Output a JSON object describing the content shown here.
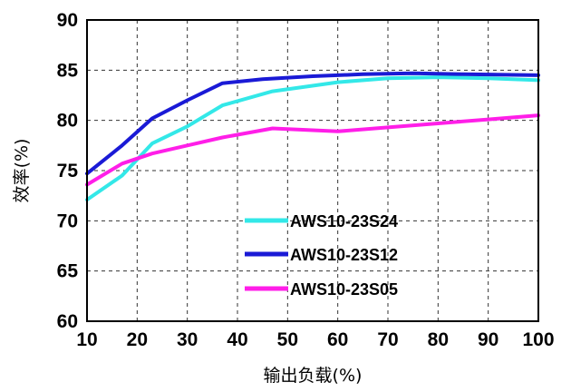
{
  "chart_data": {
    "type": "line",
    "xlabel": "输出负载(%)",
    "ylabel": "效率(%)",
    "xlim": [
      10,
      100
    ],
    "ylim": [
      60,
      90
    ],
    "xticks": [
      10,
      20,
      30,
      40,
      50,
      60,
      70,
      80,
      90,
      100
    ],
    "yticks": [
      60,
      65,
      70,
      75,
      80,
      85,
      90
    ],
    "grid": true,
    "legend_position": "center",
    "series": [
      {
        "name": "AWS10-23S24",
        "color": "#33e8e8",
        "x": [
          10,
          17,
          23,
          30,
          37,
          47,
          60,
          70,
          80,
          90,
          100
        ],
        "y": [
          72.1,
          74.5,
          77.7,
          79.4,
          81.5,
          82.9,
          83.8,
          84.2,
          84.3,
          84.2,
          84.0
        ]
      },
      {
        "name": "AWS10-23S12",
        "color": "#1a1ad6",
        "x": [
          10,
          17,
          23,
          30,
          37,
          45,
          55,
          65,
          75,
          85,
          100
        ],
        "y": [
          74.7,
          77.5,
          80.2,
          82.0,
          83.7,
          84.1,
          84.4,
          84.6,
          84.7,
          84.6,
          84.5
        ]
      },
      {
        "name": "AWS10-23S05",
        "color": "#ff1ee8",
        "x": [
          10,
          17,
          23,
          30,
          37,
          47,
          60,
          70,
          80,
          90,
          100
        ],
        "y": [
          73.6,
          75.7,
          76.7,
          77.5,
          78.3,
          79.2,
          78.9,
          79.3,
          79.7,
          80.1,
          80.5
        ]
      }
    ]
  }
}
